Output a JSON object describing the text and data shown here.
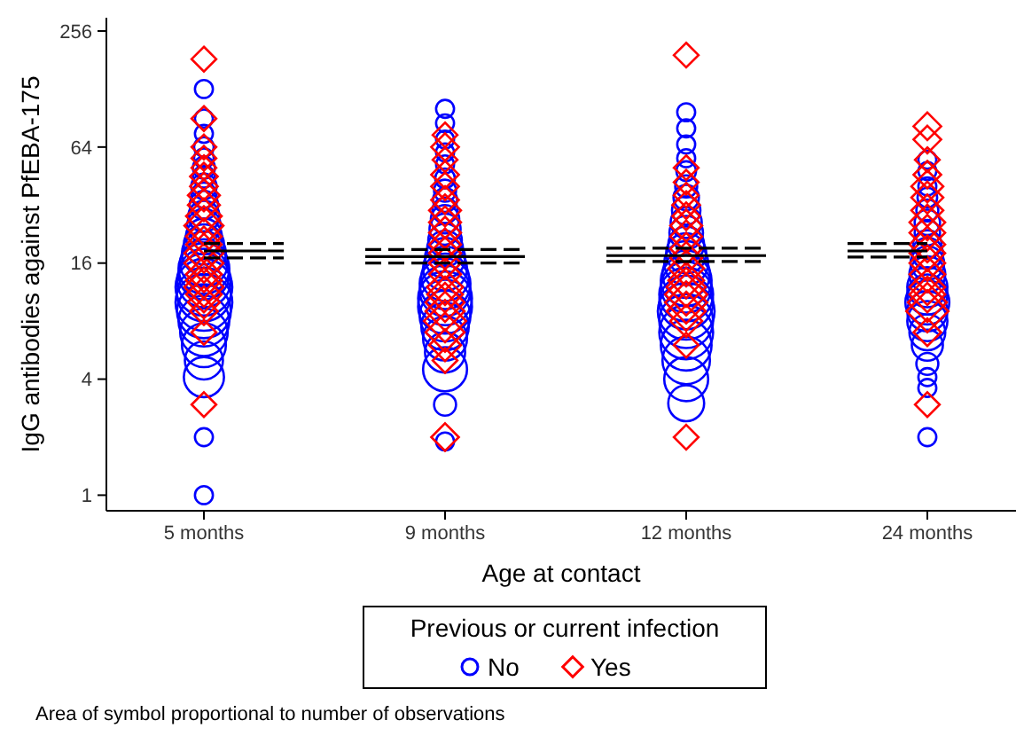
{
  "chart_data": {
    "type": "scatter",
    "xlabel": "Age at contact",
    "ylabel": "IgG antibodies against PfEBA-175",
    "legend_title": "Previous or current infection",
    "legend": "bottom",
    "annotations": [
      "Area of symbol proportional to number of observations"
    ],
    "log": "y",
    "grid": false,
    "categories": [
      "5 months",
      "9 months",
      "12 months",
      "24 months"
    ],
    "ylim": [
      0.83,
      300
    ],
    "yticks": [
      1,
      4,
      16,
      64,
      256
    ],
    "series": [
      {
        "name": "No",
        "marker": "circle",
        "color": "#0000ff",
        "x": [
          "5 months",
          "5 months",
          "5 months",
          "5 months",
          "5 months",
          "5 months",
          "5 months",
          "5 months",
          "5 months",
          "5 months",
          "5 months",
          "5 months",
          "5 months",
          "5 months",
          "5 months",
          "5 months",
          "5 months",
          "5 months",
          "5 months",
          "5 months",
          "5 months",
          "5 months",
          "5 months",
          "5 months",
          "5 months",
          "5 months",
          "5 months",
          "5 months",
          "5 months",
          "5 months",
          "9 months",
          "9 months",
          "9 months",
          "9 months",
          "9 months",
          "9 months",
          "9 months",
          "9 months",
          "9 months",
          "9 months",
          "9 months",
          "9 months",
          "9 months",
          "9 months",
          "9 months",
          "9 months",
          "9 months",
          "9 months",
          "9 months",
          "9 months",
          "9 months",
          "9 months",
          "9 months",
          "9 months",
          "9 months",
          "9 months",
          "9 months",
          "12 months",
          "12 months",
          "12 months",
          "12 months",
          "12 months",
          "12 months",
          "12 months",
          "12 months",
          "12 months",
          "12 months",
          "12 months",
          "12 months",
          "12 months",
          "12 months",
          "12 months",
          "12 months",
          "12 months",
          "12 months",
          "12 months",
          "12 months",
          "12 months",
          "12 months",
          "12 months",
          "12 months",
          "12 months",
          "24 months",
          "24 months",
          "24 months",
          "24 months",
          "24 months",
          "24 months",
          "24 months",
          "24 months",
          "24 months",
          "24 months",
          "24 months",
          "24 months",
          "24 months",
          "24 months",
          "24 months",
          "24 months",
          "24 months",
          "24 months",
          "24 months",
          "24 months",
          "24 months",
          "24 months"
        ],
        "values": [
          1,
          2,
          4.1,
          5,
          6,
          7,
          8,
          9,
          10,
          11,
          12,
          13,
          14,
          15,
          16,
          18,
          20,
          22,
          25,
          28,
          32,
          36,
          40,
          45,
          50,
          56,
          64,
          75,
          90,
          128,
          1.9,
          2.95,
          4.5,
          5.5,
          6.5,
          7.5,
          8.5,
          9.5,
          10.5,
          11.5,
          12.5,
          13.5,
          15,
          17,
          19,
          21,
          24,
          27,
          30,
          34,
          38,
          44,
          52,
          60,
          70,
          85,
          101,
          3,
          4,
          5,
          6,
          7,
          8,
          9,
          10,
          11,
          12,
          13,
          14,
          16,
          18,
          20,
          23,
          26,
          30,
          35,
          40,
          48,
          56,
          66,
          80,
          97,
          2,
          3.6,
          4.1,
          4.8,
          6,
          7,
          8,
          9,
          10,
          11,
          12,
          14,
          16,
          18,
          20,
          23,
          26,
          30,
          35,
          40,
          48,
          55
        ],
        "sizes": [
          0.1,
          0.1,
          0.5,
          0.45,
          0.6,
          0.7,
          0.8,
          0.9,
          1,
          0.9,
          1,
          0.9,
          0.8,
          0.8,
          0.7,
          0.6,
          0.5,
          0.4,
          0.35,
          0.3,
          0.25,
          0.2,
          0.2,
          0.15,
          0.15,
          0.12,
          0.12,
          0.1,
          0.1,
          0.1,
          0.1,
          0.15,
          0.6,
          0.5,
          0.6,
          0.7,
          0.8,
          0.9,
          0.9,
          0.8,
          0.8,
          0.7,
          0.6,
          0.5,
          0.4,
          0.35,
          0.3,
          0.25,
          0.2,
          0.18,
          0.15,
          0.12,
          0.1,
          0.1,
          0.1,
          0.1,
          0.1,
          0.4,
          0.6,
          0.7,
          0.8,
          0.9,
          0.9,
          1,
          0.9,
          0.9,
          0.8,
          0.8,
          0.7,
          0.6,
          0.5,
          0.4,
          0.35,
          0.3,
          0.25,
          0.2,
          0.15,
          0.12,
          0.1,
          0.1,
          0.1,
          0.1,
          0.1,
          0.1,
          0.1,
          0.15,
          0.3,
          0.4,
          0.5,
          0.5,
          0.6,
          0.5,
          0.5,
          0.4,
          0.35,
          0.3,
          0.25,
          0.2,
          0.2,
          0.15,
          0.12,
          0.1,
          0.1,
          0.1
        ]
      },
      {
        "name": "Yes",
        "marker": "diamond",
        "color": "#ff0000",
        "x": [
          "5 months",
          "5 months",
          "5 months",
          "5 months",
          "5 months",
          "5 months",
          "5 months",
          "5 months",
          "5 months",
          "5 months",
          "5 months",
          "5 months",
          "5 months",
          "5 months",
          "5 months",
          "5 months",
          "5 months",
          "5 months",
          "5 months",
          "5 months",
          "5 months",
          "5 months",
          "5 months",
          "9 months",
          "9 months",
          "9 months",
          "9 months",
          "9 months",
          "9 months",
          "9 months",
          "9 months",
          "9 months",
          "9 months",
          "9 months",
          "9 months",
          "9 months",
          "9 months",
          "9 months",
          "9 months",
          "9 months",
          "9 months",
          "9 months",
          "9 months",
          "9 months",
          "9 months",
          "12 months",
          "12 months",
          "12 months",
          "12 months",
          "12 months",
          "12 months",
          "12 months",
          "12 months",
          "12 months",
          "12 months",
          "12 months",
          "12 months",
          "12 months",
          "12 months",
          "12 months",
          "12 months",
          "12 months",
          "12 months",
          "12 months",
          "24 months",
          "24 months",
          "24 months",
          "24 months",
          "24 months",
          "24 months",
          "24 months",
          "24 months",
          "24 months",
          "24 months",
          "24 months",
          "24 months",
          "24 months",
          "24 months",
          "24 months",
          "24 months",
          "24 months",
          "24 months",
          "24 months"
        ],
        "values": [
          2.95,
          7,
          9,
          10,
          11,
          12,
          13,
          14,
          16,
          18,
          20,
          22,
          25,
          28,
          32,
          36,
          40,
          45,
          50,
          56,
          64,
          90,
          183,
          2,
          5,
          6,
          7,
          8,
          9,
          10,
          11,
          12,
          14,
          16,
          18,
          20,
          23,
          26,
          30,
          34,
          40,
          46,
          55,
          64,
          74,
          2,
          6,
          8,
          9,
          10,
          11,
          12,
          13,
          15,
          17,
          19,
          22,
          25,
          28,
          32,
          36,
          42,
          50,
          192,
          2.95,
          7,
          9,
          10,
          11,
          12,
          14,
          16,
          18,
          20,
          23,
          26,
          30,
          35,
          40,
          46,
          55,
          70,
          82
        ],
        "sizes": [
          0.12,
          0.12,
          0.15,
          0.2,
          0.25,
          0.3,
          0.25,
          0.25,
          0.3,
          0.3,
          0.25,
          0.25,
          0.3,
          0.25,
          0.2,
          0.2,
          0.15,
          0.15,
          0.12,
          0.12,
          0.12,
          0.12,
          0.12,
          0.15,
          0.12,
          0.2,
          0.3,
          0.35,
          0.3,
          0.3,
          0.25,
          0.25,
          0.2,
          0.2,
          0.2,
          0.2,
          0.2,
          0.2,
          0.2,
          0.15,
          0.15,
          0.15,
          0.12,
          0.15,
          0.12,
          0.12,
          0.12,
          0.2,
          0.3,
          0.35,
          0.35,
          0.3,
          0.25,
          0.25,
          0.2,
          0.2,
          0.2,
          0.2,
          0.15,
          0.15,
          0.12,
          0.12,
          0.12,
          0.12,
          0.12,
          0.15,
          0.35,
          0.3,
          0.25,
          0.25,
          0.25,
          0.25,
          0.25,
          0.25,
          0.25,
          0.25,
          0.2,
          0.2,
          0.2,
          0.15,
          0.12,
          0.15,
          0.15
        ]
      },
      {
        "type": "step",
        "color": "#000000",
        "line_style": "solid",
        "x": [
          "5 months",
          "9 months",
          "12 months",
          "24 months"
        ],
        "values": [
          18.5,
          17.3,
          17.5,
          18.5
        ]
      },
      {
        "type": "step",
        "color": "#000000",
        "line_style": "dashed",
        "x": [
          "5 months",
          "9 months",
          "12 months",
          "24 months"
        ],
        "values": [
          20.2,
          18.8,
          19.1,
          20.2
        ]
      },
      {
        "type": "step",
        "color": "#000000",
        "line_style": "dashed",
        "x": [
          "5 months",
          "9 months",
          "12 months",
          "24 months"
        ],
        "values": [
          17,
          16,
          16.3,
          17.2
        ]
      }
    ]
  }
}
